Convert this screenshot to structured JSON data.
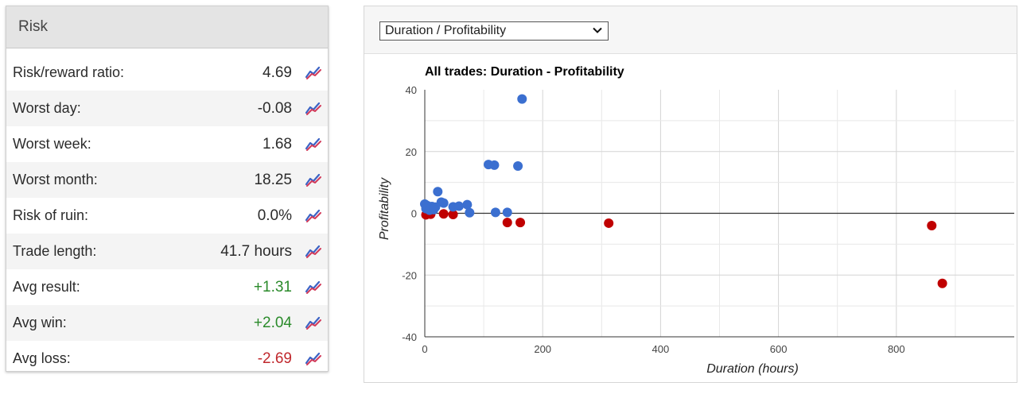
{
  "risk": {
    "title": "Risk",
    "rows": [
      {
        "label": "Risk/reward ratio:",
        "value": "4.69",
        "tone": "neutral"
      },
      {
        "label": "Worst day:",
        "value": "-0.08",
        "tone": "neutral"
      },
      {
        "label": "Worst week:",
        "value": "1.68",
        "tone": "neutral"
      },
      {
        "label": "Worst month:",
        "value": "18.25",
        "tone": "neutral"
      },
      {
        "label": "Risk of ruin:",
        "value": "0.0%",
        "tone": "neutral"
      },
      {
        "label": "Trade length:",
        "value": "41.7 hours",
        "tone": "neutral"
      },
      {
        "label": "Avg result:",
        "value": "+1.31",
        "tone": "positive"
      },
      {
        "label": "Avg win:",
        "value": "+2.04",
        "tone": "positive"
      },
      {
        "label": "Avg loss:",
        "value": "-2.69",
        "tone": "negative"
      }
    ],
    "row_icon": "chart-trend-icon"
  },
  "chart_selector": {
    "selected": "Duration / Profitability",
    "icon": "chevron-down-icon"
  },
  "chart_data": {
    "type": "scatter",
    "title": "All trades: Duration - Profitability",
    "xlabel": "Duration (hours)",
    "ylabel": "Profitability",
    "xlim": [
      0,
      1000
    ],
    "ylim": [
      -40,
      40
    ],
    "x_ticks": [
      0,
      200,
      400,
      600,
      800
    ],
    "y_ticks": [
      40,
      20,
      0,
      -20,
      -40
    ],
    "grid": true,
    "colors": {
      "win": "#3b6fd0",
      "loss": "#c00000"
    },
    "wins": [
      [
        165,
        37
      ],
      [
        108,
        15.8
      ],
      [
        118,
        15.6
      ],
      [
        158,
        15.3
      ],
      [
        22,
        7
      ],
      [
        28,
        3.6
      ],
      [
        32,
        3.3
      ],
      [
        0,
        3
      ],
      [
        4,
        2.5
      ],
      [
        12,
        2.2
      ],
      [
        72,
        2.8
      ],
      [
        48,
        2.1
      ],
      [
        58,
        2.3
      ],
      [
        18,
        2
      ],
      [
        2,
        1.5
      ],
      [
        8,
        1
      ],
      [
        15,
        1.2
      ],
      [
        120,
        0.3
      ],
      [
        140,
        0.3
      ],
      [
        76,
        0.2
      ]
    ],
    "losses": [
      [
        2,
        -0.5
      ],
      [
        10,
        -0.3
      ],
      [
        32,
        -0.2
      ],
      [
        48,
        -0.4
      ],
      [
        140,
        -3
      ],
      [
        162,
        -3
      ],
      [
        312,
        -3.2
      ],
      [
        860,
        -4
      ],
      [
        878,
        -22.7
      ]
    ]
  }
}
